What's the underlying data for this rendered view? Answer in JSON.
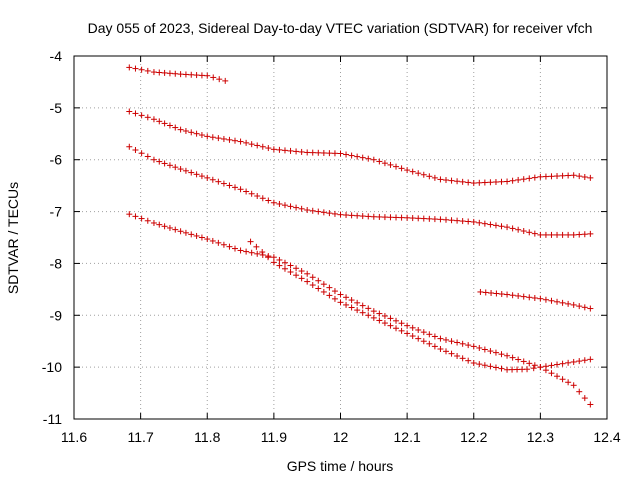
{
  "chart_data": {
    "type": "scatter",
    "title": "Day 055 of 2023, Sidereal Day-to-day VTEC variation (SDTVAR) for receiver vfch",
    "xlabel": "GPS time / hours",
    "ylabel": "SDTVAR / TECUs",
    "xlim": [
      11.6,
      12.4
    ],
    "ylim": [
      -11,
      -4
    ],
    "xticks": [
      "11.6",
      "11.7",
      "11.8",
      "11.9",
      "12",
      "12.1",
      "12.2",
      "12.3",
      "12.4"
    ],
    "yticks": [
      "-11",
      "-10",
      "-9",
      "-8",
      "-7",
      "-6",
      "-5",
      "-4"
    ],
    "grid": true,
    "marker": "plus",
    "color": "#cc0000",
    "series": [
      {
        "name": "s1",
        "points": [
          [
            11.683,
            -4.22
          ],
          [
            11.72,
            -4.31
          ],
          [
            11.76,
            -4.35
          ],
          [
            11.8,
            -4.38
          ],
          [
            11.827,
            -4.48
          ]
        ]
      },
      {
        "name": "s2",
        "points": [
          [
            11.683,
            -5.07
          ],
          [
            11.72,
            -5.22
          ],
          [
            11.76,
            -5.42
          ],
          [
            11.8,
            -5.55
          ],
          [
            11.85,
            -5.65
          ],
          [
            11.9,
            -5.8
          ],
          [
            11.95,
            -5.86
          ],
          [
            12.0,
            -5.88
          ],
          [
            12.05,
            -6.0
          ],
          [
            12.1,
            -6.2
          ],
          [
            12.15,
            -6.38
          ],
          [
            12.2,
            -6.45
          ],
          [
            12.25,
            -6.42
          ],
          [
            12.3,
            -6.33
          ],
          [
            12.35,
            -6.3
          ],
          [
            12.375,
            -6.35
          ]
        ]
      },
      {
        "name": "s3",
        "points": [
          [
            11.683,
            -5.75
          ],
          [
            11.72,
            -6.0
          ],
          [
            11.76,
            -6.18
          ],
          [
            11.8,
            -6.35
          ],
          [
            11.85,
            -6.57
          ],
          [
            11.9,
            -6.83
          ],
          [
            11.95,
            -6.97
          ],
          [
            12.0,
            -7.06
          ],
          [
            12.05,
            -7.1
          ],
          [
            12.1,
            -7.12
          ],
          [
            12.15,
            -7.15
          ],
          [
            12.2,
            -7.2
          ],
          [
            12.25,
            -7.3
          ],
          [
            12.3,
            -7.45
          ],
          [
            12.35,
            -7.45
          ],
          [
            12.375,
            -7.43
          ]
        ]
      },
      {
        "name": "s4",
        "points": [
          [
            11.683,
            -7.05
          ],
          [
            11.72,
            -7.22
          ],
          [
            11.76,
            -7.38
          ],
          [
            11.8,
            -7.53
          ],
          [
            11.85,
            -7.75
          ],
          [
            11.9,
            -7.88
          ],
          [
            11.95,
            -8.2
          ],
          [
            12.0,
            -8.6
          ],
          [
            12.05,
            -8.92
          ],
          [
            12.1,
            -9.2
          ],
          [
            12.15,
            -9.45
          ],
          [
            12.2,
            -9.6
          ],
          [
            12.25,
            -9.78
          ],
          [
            12.3,
            -10.0
          ],
          [
            12.35,
            -10.35
          ],
          [
            12.375,
            -10.72
          ]
        ]
      },
      {
        "name": "s5",
        "points": [
          [
            11.865,
            -7.58
          ],
          [
            11.9,
            -7.98
          ],
          [
            11.95,
            -8.35
          ],
          [
            12.0,
            -8.75
          ],
          [
            12.05,
            -9.05
          ],
          [
            12.1,
            -9.35
          ],
          [
            12.15,
            -9.65
          ],
          [
            12.2,
            -9.92
          ],
          [
            12.25,
            -10.05
          ],
          [
            12.28,
            -10.04
          ],
          [
            12.3,
            -10.0
          ],
          [
            12.35,
            -9.9
          ],
          [
            12.375,
            -9.85
          ]
        ]
      },
      {
        "name": "s6",
        "points": [
          [
            12.21,
            -8.55
          ],
          [
            12.25,
            -8.6
          ],
          [
            12.3,
            -8.68
          ],
          [
            12.35,
            -8.8
          ],
          [
            12.375,
            -8.87
          ]
        ]
      }
    ]
  }
}
